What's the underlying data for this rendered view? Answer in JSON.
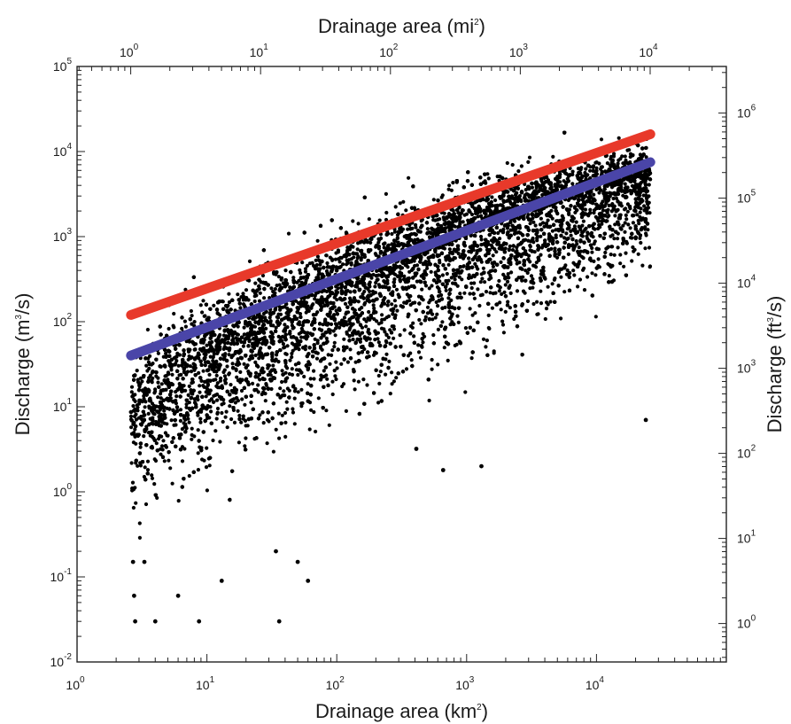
{
  "chart_data": {
    "type": "scatter",
    "x_bottom": {
      "label_main": "Drainage area (km",
      "label_sup": "2",
      "label_end": ")",
      "scale": "log",
      "lim": [
        1,
        100000
      ],
      "ticks": [
        {
          "base": "10",
          "exp": "0"
        },
        {
          "base": "10",
          "exp": "1"
        },
        {
          "base": "10",
          "exp": "2"
        },
        {
          "base": "10",
          "exp": "3"
        },
        {
          "base": "10",
          "exp": "4"
        }
      ]
    },
    "x_top": {
      "label_main": "Drainage area (mi",
      "label_sup": "2",
      "label_end": ")",
      "scale": "log",
      "conversion_km2_per_mi2": 2.59,
      "ticks": [
        {
          "base": "10",
          "exp": "0"
        },
        {
          "base": "10",
          "exp": "1"
        },
        {
          "base": "10",
          "exp": "2"
        },
        {
          "base": "10",
          "exp": "3"
        },
        {
          "base": "10",
          "exp": "4"
        }
      ]
    },
    "y_left": {
      "label_main": "Discharge (m",
      "label_sup": "3",
      "label_end": "/s)",
      "scale": "log",
      "lim": [
        0.01,
        100000
      ],
      "ticks": [
        {
          "base": "10",
          "exp": "-2"
        },
        {
          "base": "10",
          "exp": "-1"
        },
        {
          "base": "10",
          "exp": "0"
        },
        {
          "base": "10",
          "exp": "1"
        },
        {
          "base": "10",
          "exp": "2"
        },
        {
          "base": "10",
          "exp": "3"
        },
        {
          "base": "10",
          "exp": "4"
        },
        {
          "base": "10",
          "exp": "5"
        }
      ]
    },
    "y_right": {
      "label_main": "Discharge (ft",
      "label_sup": "3",
      "label_end": "/s)",
      "scale": "log",
      "conversion_ft3_per_m3": 35.3147,
      "ticks": [
        {
          "base": "10",
          "exp": "0"
        },
        {
          "base": "10",
          "exp": "1"
        },
        {
          "base": "10",
          "exp": "2"
        },
        {
          "base": "10",
          "exp": "3"
        },
        {
          "base": "10",
          "exp": "4"
        },
        {
          "base": "10",
          "exp": "5"
        },
        {
          "base": "10",
          "exp": "6"
        }
      ]
    },
    "lines": [
      {
        "color": "#e8392a",
        "x": [
          2.6,
          26000
        ],
        "y": [
          120,
          16000
        ]
      },
      {
        "color": "#4a45a8",
        "x": [
          2.6,
          26000
        ],
        "y": [
          40,
          7500
        ]
      }
    ],
    "scatter": {
      "color": "#000000",
      "x_range": [
        2.6,
        26000
      ],
      "upper_envelope": [
        [
          2.6,
          170
        ],
        [
          10,
          650
        ],
        [
          100,
          3000
        ],
        [
          1000,
          10000
        ],
        [
          10000,
          20000
        ],
        [
          26000,
          22000
        ]
      ],
      "dense_center": [
        [
          2.6,
          8
        ],
        [
          10,
          35
        ],
        [
          100,
          200
        ],
        [
          1000,
          1000
        ],
        [
          10000,
          3500
        ],
        [
          26000,
          5000
        ]
      ],
      "lower_envelope": [
        [
          2.6,
          0.1
        ],
        [
          10,
          0.3
        ],
        [
          100,
          2
        ],
        [
          1000,
          8
        ],
        [
          10000,
          50
        ],
        [
          26000,
          100
        ]
      ],
      "outliers": [
        [
          2.8,
          0.03
        ],
        [
          4,
          0.03
        ],
        [
          8.7,
          0.03
        ],
        [
          36,
          0.03
        ],
        [
          6,
          0.06
        ],
        [
          2.75,
          0.06
        ],
        [
          13,
          0.09
        ],
        [
          60,
          0.09
        ],
        [
          2.7,
          0.15
        ],
        [
          3.3,
          0.15
        ],
        [
          34,
          0.2
        ],
        [
          50,
          0.15
        ],
        [
          24000,
          7
        ],
        [
          1300,
          2.0
        ],
        [
          660,
          1.8
        ],
        [
          410,
          3.2
        ]
      ]
    },
    "grid": false,
    "legend": "none"
  }
}
